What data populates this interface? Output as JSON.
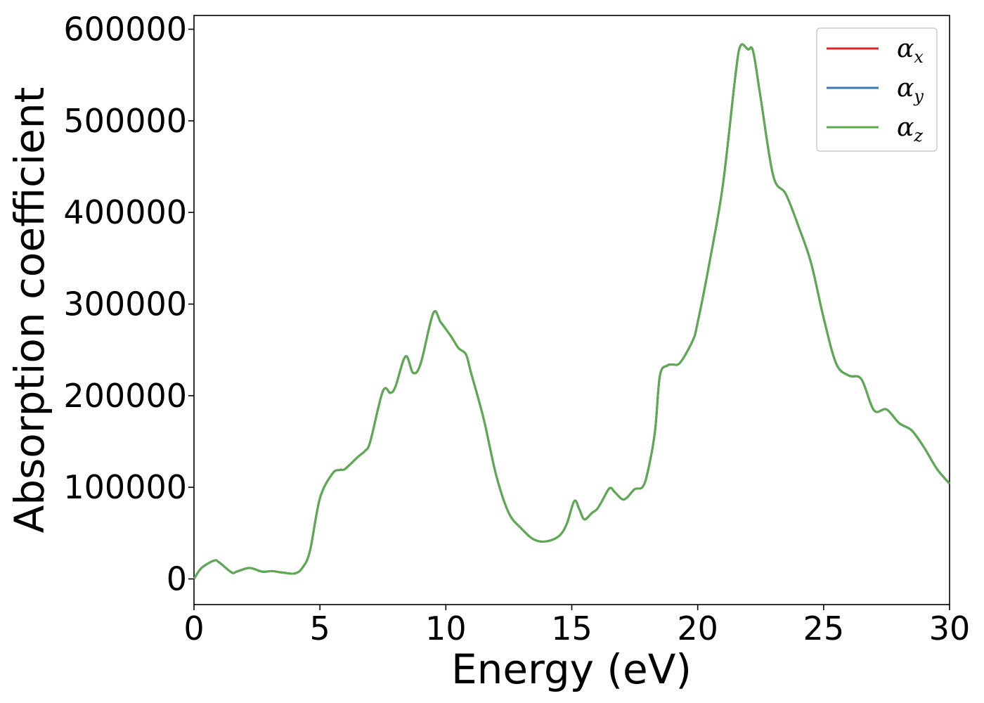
{
  "chart_data": {
    "type": "line",
    "xlabel": "Energy (eV)",
    "ylabel": "Absorption coefficient",
    "xlim": [
      0,
      30
    ],
    "ylim": [
      -28000,
      615000
    ],
    "xticks": [
      "0",
      "5",
      "10",
      "15",
      "20",
      "25",
      "30"
    ],
    "yticks": [
      "0",
      "100000",
      "200000",
      "300000",
      "400000",
      "500000",
      "600000"
    ],
    "grid": false,
    "legend_position": "top-right",
    "x": [
      0,
      0.3,
      0.8,
      1.0,
      1.5,
      1.7,
      2.2,
      2.7,
      3.1,
      3.5,
      4.0,
      4.3,
      4.6,
      5.0,
      5.5,
      5.8,
      6.0,
      6.5,
      6.8,
      7.0,
      7.5,
      7.8,
      8.0,
      8.4,
      8.7,
      9.0,
      9.5,
      9.8,
      10.2,
      10.5,
      10.8,
      11.0,
      11.5,
      12.0,
      12.5,
      13.0,
      13.5,
      14.0,
      14.5,
      14.8,
      15.1,
      15.3,
      15.5,
      15.8,
      16.0,
      16.2,
      16.5,
      16.7,
      17.0,
      17.2,
      17.5,
      17.8,
      18.0,
      18.3,
      18.5,
      18.8,
      19.0,
      19.3,
      19.8,
      20.0,
      20.5,
      21.0,
      21.5,
      21.7,
      22.0,
      22.2,
      22.5,
      23.0,
      23.5,
      24.0,
      24.5,
      25.0,
      25.5,
      26.0,
      26.5,
      27.0,
      27.5,
      28.0,
      28.5,
      29.0,
      29.5,
      30.0
    ],
    "series": [
      {
        "name": "αx",
        "color": "#d62728",
        "values": [
          0,
          12000,
          20000,
          18000,
          7000,
          8000,
          12000,
          8000,
          8500,
          7000,
          6000,
          12000,
          30000,
          88000,
          115000,
          119000,
          120000,
          133000,
          140000,
          150000,
          205000,
          203000,
          210000,
          243000,
          225000,
          235000,
          290000,
          280000,
          265000,
          252000,
          245000,
          225000,
          175000,
          113000,
          72000,
          55000,
          43000,
          41000,
          47000,
          60000,
          85000,
          76000,
          65000,
          72000,
          76000,
          85000,
          99000,
          95000,
          87000,
          89000,
          98000,
          100000,
          115000,
          160000,
          222000,
          233000,
          234000,
          236000,
          260000,
          280000,
          350000,
          430000,
          550000,
          582000,
          578000,
          576000,
          525000,
          440000,
          420000,
          385000,
          345000,
          285000,
          235000,
          222000,
          218000,
          184000,
          185000,
          170000,
          162000,
          143000,
          120000,
          104000
        ]
      },
      {
        "name": "αy",
        "color": "#3a77b0",
        "values": [
          0,
          12000,
          20000,
          18000,
          7000,
          8000,
          12000,
          8000,
          8500,
          7000,
          6000,
          12000,
          30000,
          88000,
          115000,
          119000,
          120000,
          133000,
          140000,
          150000,
          205000,
          203000,
          210000,
          243000,
          225000,
          235000,
          290000,
          280000,
          265000,
          252000,
          245000,
          225000,
          175000,
          113000,
          72000,
          55000,
          43000,
          41000,
          47000,
          60000,
          85000,
          76000,
          65000,
          72000,
          76000,
          85000,
          99000,
          95000,
          87000,
          89000,
          98000,
          100000,
          115000,
          160000,
          222000,
          233000,
          234000,
          236000,
          260000,
          280000,
          350000,
          430000,
          550000,
          582000,
          578000,
          576000,
          525000,
          440000,
          420000,
          385000,
          345000,
          285000,
          235000,
          222000,
          218000,
          184000,
          185000,
          170000,
          162000,
          143000,
          120000,
          104000
        ]
      },
      {
        "name": "αz",
        "color": "#5aac4f",
        "values": [
          0,
          12000,
          20000,
          18000,
          7000,
          8000,
          12000,
          8000,
          8500,
          7000,
          6000,
          12000,
          30000,
          88000,
          115000,
          119000,
          120000,
          133000,
          140000,
          150000,
          205000,
          203000,
          210000,
          243000,
          225000,
          235000,
          290000,
          280000,
          265000,
          252000,
          245000,
          225000,
          175000,
          113000,
          72000,
          55000,
          43000,
          41000,
          47000,
          60000,
          85000,
          76000,
          65000,
          72000,
          76000,
          85000,
          99000,
          95000,
          87000,
          89000,
          98000,
          100000,
          115000,
          160000,
          222000,
          233000,
          234000,
          236000,
          260000,
          280000,
          350000,
          430000,
          550000,
          582000,
          578000,
          576000,
          525000,
          440000,
          420000,
          385000,
          345000,
          285000,
          235000,
          222000,
          218000,
          184000,
          185000,
          170000,
          162000,
          143000,
          120000,
          104000
        ]
      }
    ],
    "legend": [
      {
        "symbol": "α",
        "sub": "x"
      },
      {
        "symbol": "α",
        "sub": "y"
      },
      {
        "symbol": "α",
        "sub": "z"
      }
    ]
  }
}
